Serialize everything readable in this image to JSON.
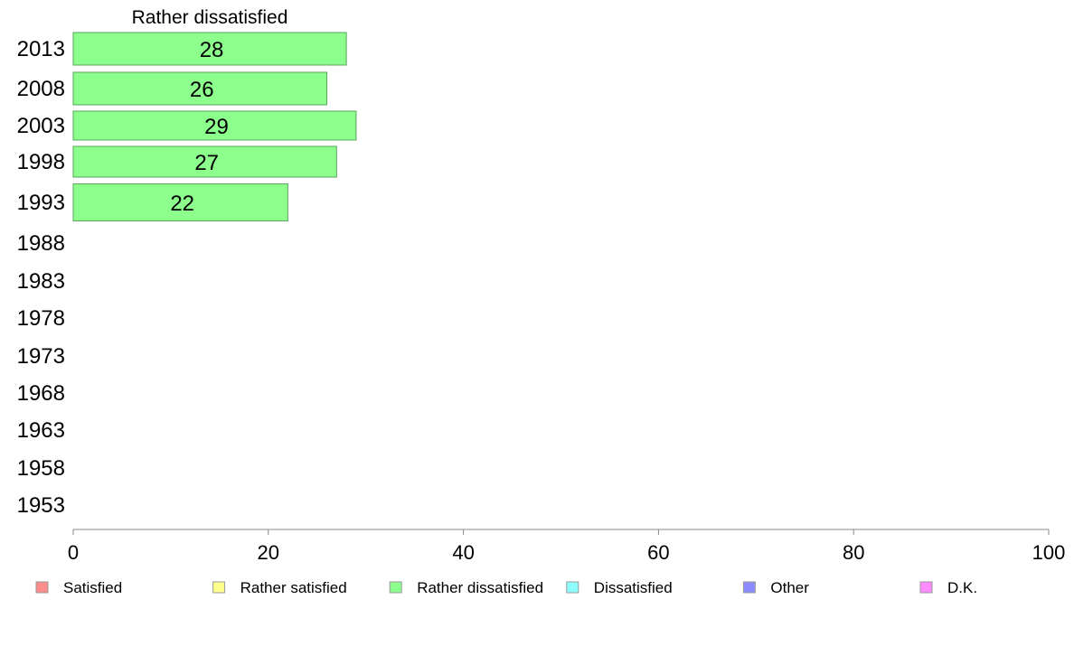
{
  "chart_data": {
    "type": "bar",
    "orientation": "horizontal",
    "title": "Rather dissatisfied",
    "categories": [
      "2013",
      "2008",
      "2003",
      "1998",
      "1993",
      "1988",
      "1983",
      "1978",
      "1973",
      "1968",
      "1963",
      "1958",
      "1953"
    ],
    "series": [
      {
        "name": "Rather dissatisfied",
        "values": [
          28,
          26,
          29,
          27,
          22,
          null,
          null,
          null,
          null,
          null,
          null,
          null,
          null
        ]
      }
    ],
    "value_labels": [
      "28",
      "26",
      "29",
      "27",
      "22",
      "",
      "",
      "",
      "",
      "",
      "",
      "",
      ""
    ],
    "xlim": [
      0,
      100
    ],
    "xticks": [
      0,
      20,
      40,
      60,
      80,
      100
    ],
    "xtick_labels": [
      "0",
      "20",
      "40",
      "60",
      "80",
      "100"
    ],
    "grid": false,
    "legend_position": "bottom",
    "legend": [
      {
        "label": "Satisfied",
        "color": "#ff8c8c"
      },
      {
        "label": "Rather satisfied",
        "color": "#ffff8c"
      },
      {
        "label": "Rather dissatisfied",
        "color": "#8cff8c"
      },
      {
        "label": "Dissatisfied",
        "color": "#8cffff"
      },
      {
        "label": "Other",
        "color": "#8c8cff"
      },
      {
        "label": "D.K.",
        "color": "#ff8cff"
      }
    ],
    "bar_color": "#8cff8c",
    "bar_edge_color": "#5aa55a",
    "axis_color": "#888888"
  }
}
